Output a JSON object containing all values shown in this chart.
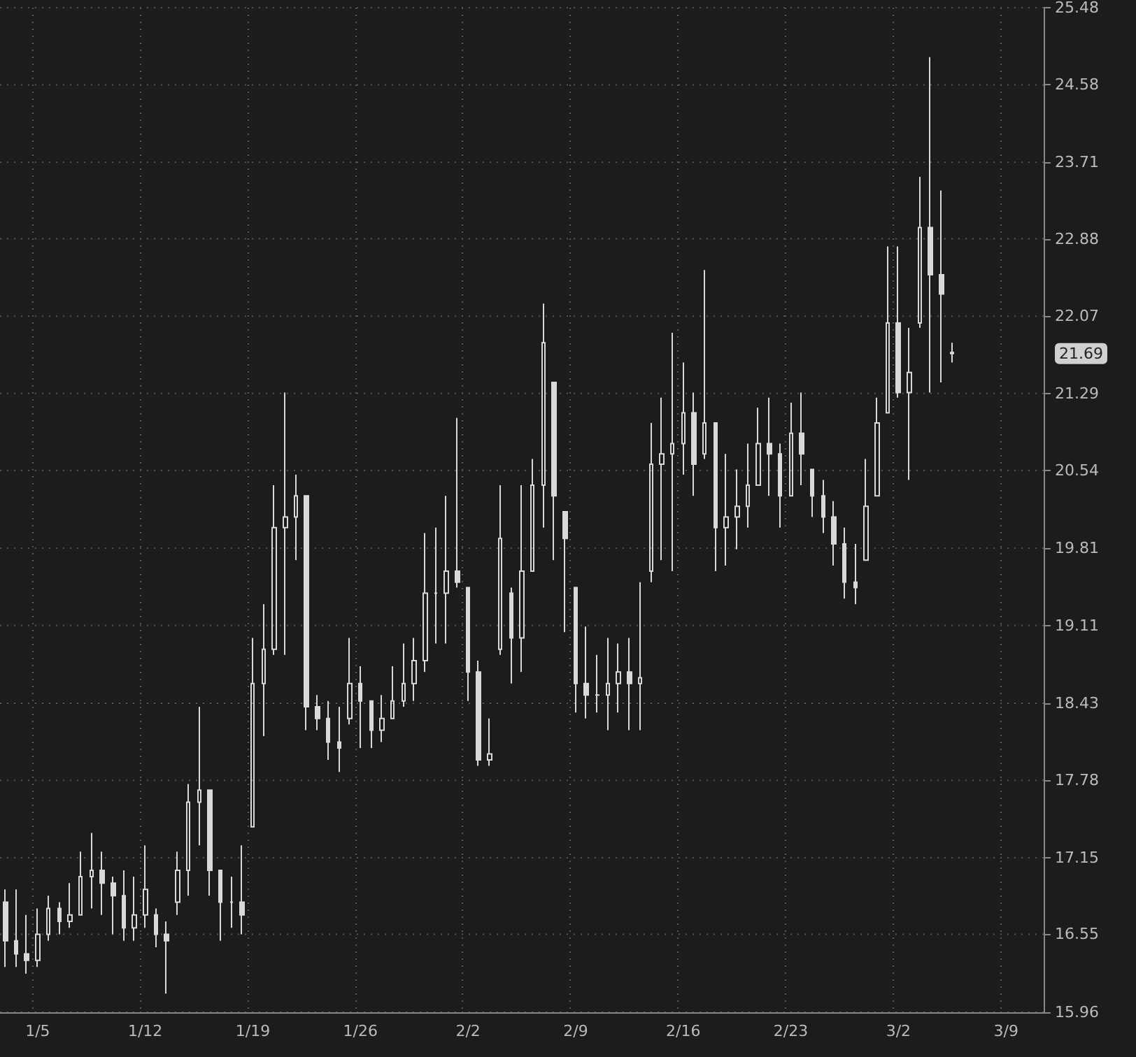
{
  "chart_data": {
    "type": "candlestick",
    "categories": [
      null,
      null,
      null,
      "1/5",
      null,
      null,
      null,
      null,
      null,
      null,
      null,
      null,
      null,
      "1/12",
      null,
      null,
      null,
      null,
      null,
      null,
      null,
      null,
      null,
      "1/19",
      null,
      null,
      null,
      null,
      null,
      null,
      null,
      null,
      null,
      "1/26",
      null,
      null,
      null,
      null,
      null,
      null,
      null,
      null,
      null,
      "2/2",
      null,
      null,
      null,
      null,
      null,
      null,
      null,
      null,
      null,
      "2/9",
      null,
      null,
      null,
      null,
      null,
      null,
      null,
      null,
      null,
      "2/16",
      null,
      null,
      null,
      null,
      null,
      null,
      null,
      null,
      null,
      "2/23",
      null,
      null,
      null,
      null,
      null,
      null,
      null,
      null,
      null,
      "3/2",
      null,
      null,
      null,
      null,
      null,
      null,
      null,
      null,
      null,
      "3/9",
      null,
      null,
      null
    ],
    "ohlc": [
      [
        16.8,
        16.9,
        16.3,
        16.5
      ],
      [
        16.5,
        16.9,
        16.3,
        16.4
      ],
      [
        16.4,
        16.7,
        16.25,
        16.35
      ],
      [
        16.35,
        16.75,
        16.3,
        16.55
      ],
      [
        16.55,
        16.85,
        16.5,
        16.75
      ],
      [
        16.75,
        16.8,
        16.55,
        16.65
      ],
      [
        16.65,
        16.95,
        16.6,
        16.7
      ],
      [
        16.7,
        17.2,
        16.7,
        17.0
      ],
      [
        17.0,
        17.35,
        16.75,
        17.05
      ],
      [
        17.05,
        17.2,
        16.7,
        16.95
      ],
      [
        16.95,
        17.0,
        16.55,
        16.85
      ],
      [
        16.85,
        17.05,
        16.5,
        16.6
      ],
      [
        16.6,
        17.0,
        16.5,
        16.7
      ],
      [
        16.7,
        17.25,
        16.6,
        16.9
      ],
      [
        16.7,
        16.75,
        16.45,
        16.55
      ],
      [
        16.55,
        16.65,
        16.1,
        16.5
      ],
      [
        16.8,
        17.2,
        16.7,
        17.05
      ],
      [
        17.05,
        17.75,
        16.85,
        17.6
      ],
      [
        17.6,
        18.4,
        17.25,
        17.7
      ],
      [
        17.7,
        17.7,
        16.85,
        17.05
      ],
      [
        17.05,
        17.05,
        16.5,
        16.8
      ],
      [
        16.8,
        17.0,
        16.6,
        16.8
      ],
      [
        16.8,
        17.25,
        16.55,
        16.7
      ],
      [
        17.4,
        19.0,
        17.4,
        18.6
      ],
      [
        18.6,
        19.3,
        18.15,
        18.9
      ],
      [
        18.9,
        20.4,
        18.85,
        20.0
      ],
      [
        20.0,
        21.3,
        18.85,
        20.1
      ],
      [
        20.1,
        20.5,
        19.7,
        20.3
      ],
      [
        20.3,
        20.3,
        18.2,
        18.4
      ],
      [
        18.4,
        18.5,
        18.2,
        18.3
      ],
      [
        18.3,
        18.45,
        17.95,
        18.1
      ],
      [
        18.1,
        18.4,
        17.85,
        18.05
      ],
      [
        18.3,
        19.0,
        18.25,
        18.6
      ],
      [
        18.6,
        18.75,
        18.05,
        18.45
      ],
      [
        18.45,
        18.45,
        18.05,
        18.2
      ],
      [
        18.2,
        18.5,
        18.1,
        18.3
      ],
      [
        18.3,
        18.75,
        18.3,
        18.45
      ],
      [
        18.45,
        18.95,
        18.4,
        18.6
      ],
      [
        18.6,
        19.0,
        18.45,
        18.8
      ],
      [
        18.8,
        19.95,
        18.7,
        19.4
      ],
      [
        19.4,
        20.0,
        18.95,
        19.4
      ],
      [
        19.4,
        20.3,
        18.95,
        19.6
      ],
      [
        19.6,
        21.05,
        19.45,
        19.5
      ],
      [
        19.45,
        19.45,
        18.45,
        18.7
      ],
      [
        18.7,
        18.8,
        17.9,
        17.95
      ],
      [
        17.95,
        18.3,
        17.9,
        18.0
      ],
      [
        18.9,
        20.4,
        18.85,
        19.9
      ],
      [
        19.4,
        19.45,
        18.6,
        19.0
      ],
      [
        19.0,
        20.4,
        18.7,
        19.6
      ],
      [
        19.6,
        20.65,
        19.6,
        20.4
      ],
      [
        20.4,
        22.2,
        20.0,
        21.8
      ],
      [
        21.4,
        21.4,
        19.7,
        20.3
      ],
      [
        20.15,
        20.15,
        19.05,
        19.9
      ],
      [
        19.45,
        19.45,
        18.35,
        18.6
      ],
      [
        18.6,
        19.1,
        18.3,
        18.5
      ],
      [
        18.5,
        18.85,
        18.35,
        18.5
      ],
      [
        18.5,
        19.0,
        18.2,
        18.6
      ],
      [
        18.6,
        18.95,
        18.35,
        18.7
      ],
      [
        18.7,
        19.0,
        18.2,
        18.6
      ],
      [
        18.6,
        19.5,
        18.2,
        18.65
      ],
      [
        19.6,
        21.0,
        19.5,
        20.6
      ],
      [
        20.6,
        21.25,
        19.7,
        20.7
      ],
      [
        20.7,
        21.9,
        19.6,
        20.8
      ],
      [
        20.8,
        21.6,
        20.5,
        21.1
      ],
      [
        21.1,
        21.3,
        20.3,
        20.6
      ],
      [
        20.7,
        22.55,
        20.65,
        21.0
      ],
      [
        21.0,
        21.0,
        19.6,
        20.0
      ],
      [
        20.0,
        20.7,
        19.65,
        20.1
      ],
      [
        20.1,
        20.55,
        19.8,
        20.2
      ],
      [
        20.2,
        20.8,
        20.0,
        20.4
      ],
      [
        20.4,
        21.15,
        20.4,
        20.8
      ],
      [
        20.8,
        21.25,
        20.3,
        20.7
      ],
      [
        20.7,
        20.8,
        20.0,
        20.3
      ],
      [
        20.3,
        21.2,
        20.3,
        20.9
      ],
      [
        20.9,
        21.3,
        20.4,
        20.7
      ],
      [
        20.55,
        20.55,
        20.1,
        20.3
      ],
      [
        20.3,
        20.45,
        19.95,
        20.1
      ],
      [
        20.1,
        20.25,
        19.65,
        19.85
      ],
      [
        19.85,
        20.0,
        19.35,
        19.5
      ],
      [
        19.5,
        19.85,
        19.3,
        19.45
      ],
      [
        19.7,
        20.65,
        19.7,
        20.2
      ],
      [
        20.3,
        21.25,
        20.3,
        21.0
      ],
      [
        21.1,
        22.8,
        21.1,
        22.0
      ],
      [
        22.0,
        22.8,
        21.25,
        21.3
      ],
      [
        21.3,
        21.95,
        20.45,
        21.5
      ],
      [
        22.0,
        23.55,
        21.95,
        23.0
      ],
      [
        23.0,
        24.9,
        21.3,
        22.5
      ],
      [
        22.5,
        23.4,
        21.4,
        22.3
      ],
      [
        21.7,
        21.8,
        21.6,
        21.69
      ],
      null,
      null,
      null,
      null,
      null,
      null,
      null,
      null
    ],
    "color": "#d9d9d9",
    "log": true,
    "ylim": [
      15.96,
      25.48
    ],
    "yticks": [
      15.96,
      16.55,
      17.15,
      17.78,
      18.43,
      19.11,
      19.81,
      20.54,
      21.29,
      22.07,
      22.88,
      23.71,
      24.58,
      25.48
    ],
    "grid": true,
    "annotations": [
      "21.69"
    ]
  }
}
